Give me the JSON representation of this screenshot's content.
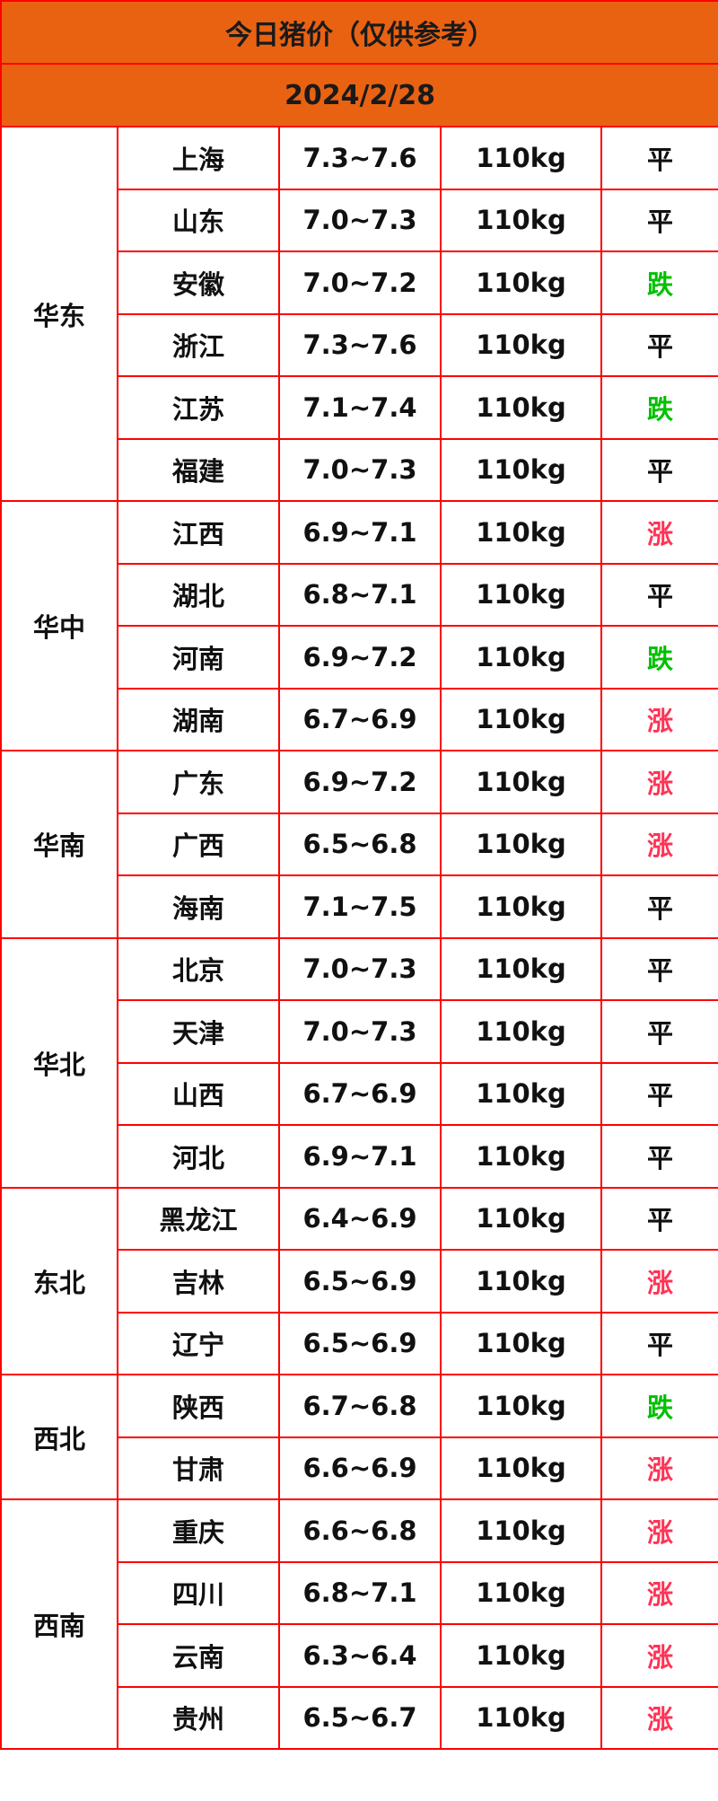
{
  "title": "今日猪价（仅供参考）",
  "date": "2024/2/28",
  "colors": {
    "header_bg": "#e96212",
    "border": "#ff0000",
    "up": "#ff3355",
    "down": "#00c000",
    "flat": "#111111"
  },
  "regions": [
    {
      "name": "华东",
      "rows": [
        {
          "province": "上海",
          "price": "7.3~7.6",
          "weight": "110kg",
          "trend": "平"
        },
        {
          "province": "山东",
          "price": "7.0~7.3",
          "weight": "110kg",
          "trend": "平"
        },
        {
          "province": "安徽",
          "price": "7.0~7.2",
          "weight": "110kg",
          "trend": "跌"
        },
        {
          "province": "浙江",
          "price": "7.3~7.6",
          "weight": "110kg",
          "trend": "平"
        },
        {
          "province": "江苏",
          "price": "7.1~7.4",
          "weight": "110kg",
          "trend": "跌"
        },
        {
          "province": "福建",
          "price": "7.0~7.3",
          "weight": "110kg",
          "trend": "平"
        }
      ]
    },
    {
      "name": "华中",
      "rows": [
        {
          "province": "江西",
          "price": "6.9~7.1",
          "weight": "110kg",
          "trend": "涨"
        },
        {
          "province": "湖北",
          "price": "6.8~7.1",
          "weight": "110kg",
          "trend": "平"
        },
        {
          "province": "河南",
          "price": "6.9~7.2",
          "weight": "110kg",
          "trend": "跌"
        },
        {
          "province": "湖南",
          "price": "6.7~6.9",
          "weight": "110kg",
          "trend": "涨"
        }
      ]
    },
    {
      "name": "华南",
      "rows": [
        {
          "province": "广东",
          "price": "6.9~7.2",
          "weight": "110kg",
          "trend": "涨"
        },
        {
          "province": "广西",
          "price": "6.5~6.8",
          "weight": "110kg",
          "trend": "涨"
        },
        {
          "province": "海南",
          "price": "7.1~7.5",
          "weight": "110kg",
          "trend": "平"
        }
      ]
    },
    {
      "name": "华北",
      "rows": [
        {
          "province": "北京",
          "price": "7.0~7.3",
          "weight": "110kg",
          "trend": "平"
        },
        {
          "province": "天津",
          "price": "7.0~7.3",
          "weight": "110kg",
          "trend": "平"
        },
        {
          "province": "山西",
          "price": "6.7~6.9",
          "weight": "110kg",
          "trend": "平"
        },
        {
          "province": "河北",
          "price": "6.9~7.1",
          "weight": "110kg",
          "trend": "平"
        }
      ]
    },
    {
      "name": "东北",
      "rows": [
        {
          "province": "黑龙江",
          "price": "6.4~6.9",
          "weight": "110kg",
          "trend": "平"
        },
        {
          "province": "吉林",
          "price": "6.5~6.9",
          "weight": "110kg",
          "trend": "涨"
        },
        {
          "province": "辽宁",
          "price": "6.5~6.9",
          "weight": "110kg",
          "trend": "平"
        }
      ]
    },
    {
      "name": "西北",
      "rows": [
        {
          "province": "陕西",
          "price": "6.7~6.8",
          "weight": "110kg",
          "trend": "跌"
        },
        {
          "province": "甘肃",
          "price": "6.6~6.9",
          "weight": "110kg",
          "trend": "涨"
        }
      ]
    },
    {
      "name": "西南",
      "rows": [
        {
          "province": "重庆",
          "price": "6.6~6.8",
          "weight": "110kg",
          "trend": "涨"
        },
        {
          "province": "四川",
          "price": "6.8~7.1",
          "weight": "110kg",
          "trend": "涨"
        },
        {
          "province": "云南",
          "price": "6.3~6.4",
          "weight": "110kg",
          "trend": "涨"
        },
        {
          "province": "贵州",
          "price": "6.5~6.7",
          "weight": "110kg",
          "trend": "涨"
        }
      ]
    }
  ]
}
